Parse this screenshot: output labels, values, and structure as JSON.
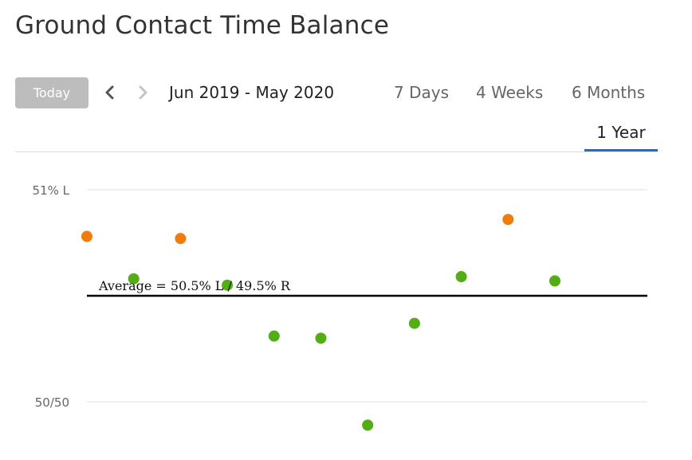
{
  "header": {
    "title": "Ground Contact Time Balance",
    "today_label": "Today",
    "date_range": "Jun 2019 - May 2020"
  },
  "range_tabs": [
    "7 Days",
    "4 Weeks",
    "6 Months",
    "1 Year"
  ],
  "active_tab": "1 Year",
  "colors": {
    "accent": "#1f6fc5",
    "in_range_point": "#52ae14",
    "out_of_range_point": "#ee7d0c"
  },
  "chart_data": {
    "type": "scatter",
    "y_tick_labels": [
      "51% L",
      "50/50"
    ],
    "y_unit": "% L",
    "ylim": [
      49.9,
      51.0
    ],
    "grid": true,
    "average_label": "Average = 50.5% L / 49.5% R",
    "average": 50.5,
    "points": [
      {
        "x": 1,
        "y": 50.78,
        "status": "out_of_range"
      },
      {
        "x": 2,
        "y": 50.58,
        "status": "in_range"
      },
      {
        "x": 3,
        "y": 50.77,
        "status": "out_of_range"
      },
      {
        "x": 4,
        "y": 50.55,
        "status": "in_range"
      },
      {
        "x": 5,
        "y": 50.31,
        "status": "in_range"
      },
      {
        "x": 6,
        "y": 50.3,
        "status": "in_range"
      },
      {
        "x": 7,
        "y": 49.89,
        "status": "in_range"
      },
      {
        "x": 8,
        "y": 50.37,
        "status": "in_range"
      },
      {
        "x": 9,
        "y": 50.59,
        "status": "in_range"
      },
      {
        "x": 10,
        "y": 50.86,
        "status": "out_of_range"
      },
      {
        "x": 11,
        "y": 50.57,
        "status": "in_range"
      }
    ]
  }
}
